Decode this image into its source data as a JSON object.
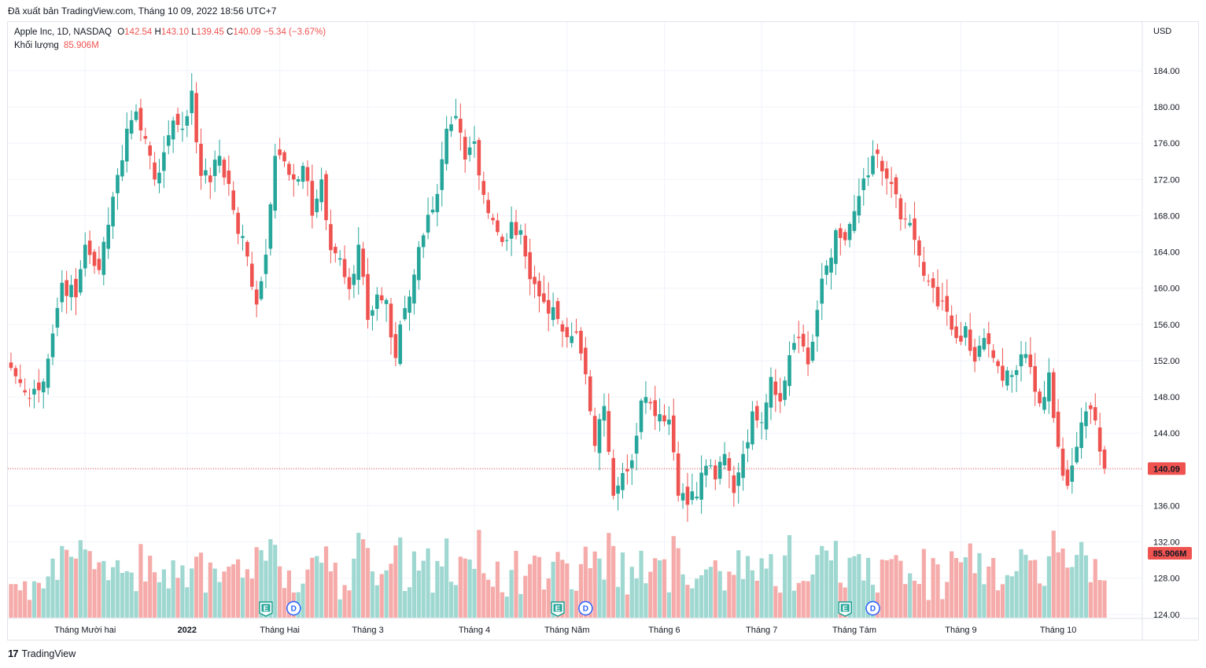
{
  "caption": "Đã xuất bản TradingView.com, Tháng 10 09, 2022 18:56 UTC+7",
  "legend": {
    "name": "Apple Inc, 1D, NASDAQ",
    "o_label": "O",
    "o_value": "142.54",
    "h_label": "H",
    "h_value": "143.10",
    "l_label": "L",
    "l_value": "139.45",
    "c_label": "C",
    "c_value": "140.09",
    "change": "−5.34 (−3.67%)",
    "volume_label": "Khối lượng",
    "volume_value": "85.906M"
  },
  "currency": "USD",
  "footer": {
    "logo": "17",
    "brand": "TradingView"
  },
  "colors": {
    "up": "#26a69a",
    "down": "#ef5350",
    "up_volume": "#9fd7d1",
    "down_volume": "#f5aba9",
    "grid": "#f0f3fa",
    "text": "#131722"
  },
  "chart_data": {
    "type": "candlestick",
    "symbol": "Apple Inc, 1D, NASDAQ",
    "y_ticks": [
      "124.00",
      "128.00",
      "132.00",
      "136.00",
      "140.00",
      "144.00",
      "148.00",
      "152.00",
      "156.00",
      "160.00",
      "164.00",
      "168.00",
      "172.00",
      "176.00",
      "180.00",
      "184.00"
    ],
    "y_range": [
      124,
      186
    ],
    "last_price_label": "140.09",
    "last_volume_label": "85.906M",
    "x_labels": [
      {
        "label": "Tháng Mười hai",
        "index": 16
      },
      {
        "label": "2022",
        "index": 38,
        "bold": true
      },
      {
        "label": "Tháng Hai",
        "index": 58
      },
      {
        "label": "Tháng 3",
        "index": 77
      },
      {
        "label": "Tháng 4",
        "index": 100
      },
      {
        "label": "Tháng Năm",
        "index": 120
      },
      {
        "label": "Tháng 6",
        "index": 141
      },
      {
        "label": "Tháng 7",
        "index": 162
      },
      {
        "label": "Tháng Tám",
        "index": 182
      },
      {
        "label": "Tháng 9",
        "index": 205
      },
      {
        "label": "Tháng 10",
        "index": 226
      }
    ],
    "events": [
      {
        "type": "E",
        "index": 55
      },
      {
        "type": "D",
        "index": 61
      },
      {
        "type": "E",
        "index": 118
      },
      {
        "type": "D",
        "index": 124
      },
      {
        "type": "E",
        "index": 180
      },
      {
        "type": "D",
        "index": 186
      }
    ],
    "anchors": [
      [
        0,
        151.2
      ],
      [
        3,
        148.5
      ],
      [
        5,
        148.9
      ],
      [
        7,
        149.7
      ],
      [
        9,
        155.0
      ],
      [
        11,
        160.6
      ],
      [
        14,
        159.0
      ],
      [
        16,
        164.8
      ],
      [
        19,
        162.0
      ],
      [
        21,
        167.0
      ],
      [
        23,
        172.5
      ],
      [
        25,
        177.6
      ],
      [
        27,
        179.5
      ],
      [
        29,
        176.5
      ],
      [
        31,
        172.0
      ],
      [
        33,
        175.0
      ],
      [
        35,
        178.5
      ],
      [
        37,
        177.6
      ],
      [
        39,
        181.8
      ],
      [
        41,
        172.4
      ],
      [
        43,
        171.7
      ],
      [
        45,
        174.6
      ],
      [
        47,
        171.5
      ],
      [
        49,
        166.0
      ],
      [
        51,
        163.5
      ],
      [
        53,
        158.2
      ],
      [
        55,
        163.7
      ],
      [
        57,
        174.6
      ],
      [
        59,
        174.0
      ],
      [
        61,
        172.0
      ],
      [
        63,
        173.5
      ],
      [
        65,
        168.0
      ],
      [
        67,
        172.0
      ],
      [
        69,
        164.2
      ],
      [
        71,
        163.3
      ],
      [
        73,
        159.9
      ],
      [
        75,
        164.8
      ],
      [
        77,
        156.5
      ],
      [
        79,
        159.3
      ],
      [
        81,
        158.7
      ],
      [
        83,
        152.3
      ],
      [
        85,
        157.8
      ],
      [
        87,
        161.5
      ],
      [
        90,
        168.1
      ],
      [
        92,
        170.4
      ],
      [
        94,
        177.6
      ],
      [
        96,
        179.0
      ],
      [
        98,
        174.2
      ],
      [
        100,
        176.2
      ],
      [
        102,
        170.3
      ],
      [
        104,
        167.5
      ],
      [
        106,
        165.1
      ],
      [
        108,
        167.3
      ],
      [
        110,
        166.4
      ],
      [
        112,
        161.0
      ],
      [
        114,
        159.1
      ],
      [
        116,
        157.2
      ],
      [
        118,
        156.6
      ],
      [
        120,
        154.6
      ],
      [
        122,
        155.1
      ],
      [
        124,
        150.5
      ],
      [
        126,
        142.6
      ],
      [
        128,
        147.0
      ],
      [
        130,
        137.1
      ],
      [
        132,
        139.6
      ],
      [
        134,
        141.0
      ],
      [
        136,
        147.6
      ],
      [
        138,
        147.3
      ],
      [
        140,
        146.1
      ],
      [
        142,
        145.5
      ],
      [
        144,
        137.1
      ],
      [
        146,
        136.1
      ],
      [
        148,
        137.0
      ],
      [
        150,
        140.4
      ],
      [
        152,
        138.9
      ],
      [
        154,
        141.7
      ],
      [
        156,
        137.4
      ],
      [
        158,
        141.7
      ],
      [
        160,
        146.4
      ],
      [
        162,
        145.2
      ],
      [
        164,
        150.2
      ],
      [
        166,
        147.5
      ],
      [
        168,
        152.6
      ],
      [
        170,
        154.5
      ],
      [
        172,
        151.6
      ],
      [
        174,
        157.6
      ],
      [
        176,
        162.5
      ],
      [
        178,
        166.4
      ],
      [
        180,
        165.3
      ],
      [
        182,
        168.5
      ],
      [
        184,
        172.1
      ],
      [
        186,
        174.6
      ],
      [
        188,
        172.9
      ],
      [
        190,
        171.5
      ],
      [
        192,
        167.6
      ],
      [
        194,
        167.2
      ],
      [
        196,
        163.6
      ],
      [
        198,
        160.8
      ],
      [
        200,
        158.0
      ],
      [
        202,
        157.4
      ],
      [
        204,
        154.5
      ],
      [
        206,
        155.8
      ],
      [
        208,
        151.9
      ],
      [
        210,
        154.5
      ],
      [
        212,
        152.3
      ],
      [
        214,
        149.8
      ],
      [
        216,
        150.4
      ],
      [
        218,
        152.7
      ],
      [
        220,
        151.3
      ],
      [
        222,
        147.3
      ],
      [
        224,
        150.7
      ],
      [
        226,
        142.5
      ],
      [
        228,
        138.2
      ],
      [
        230,
        142.5
      ],
      [
        232,
        146.4
      ],
      [
        234,
        145.4
      ],
      [
        236,
        140.1
      ]
    ]
  }
}
